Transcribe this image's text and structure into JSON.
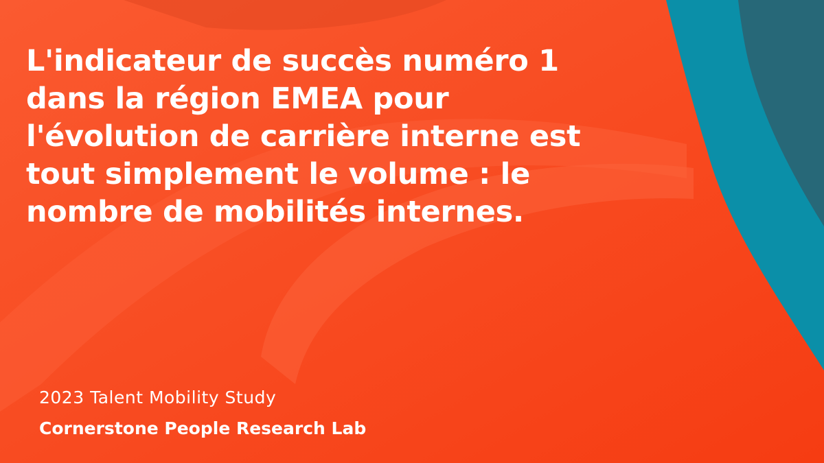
{
  "headline": {
    "lines": [
      "L'indicateur de succès numéro 1",
      "dans la région EMEA pour",
      "l'évolution de carrière interne est",
      "tout simplement le volume : le",
      "nombre de mobilités internes."
    ]
  },
  "footer": {
    "study": "2023 Talent Mobility Study",
    "lab": "Cornerstone People Research Lab"
  },
  "colors": {
    "background": "#f8451a",
    "highlight": "#fb5a32",
    "teal": "#0b8fa8",
    "dark_teal": "#276878",
    "text": "#ffffff"
  }
}
